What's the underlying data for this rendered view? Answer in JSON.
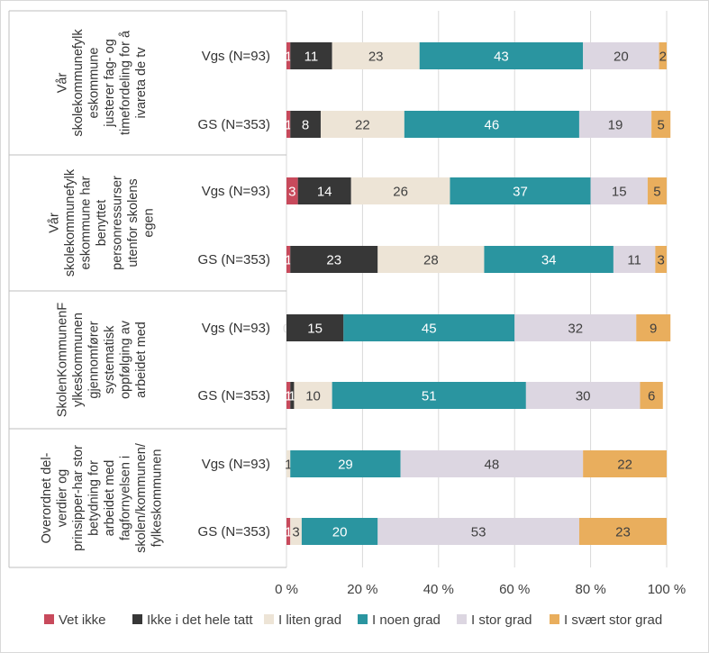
{
  "chart_data": {
    "type": "bar",
    "orientation": "horizontal",
    "stacked": "percent",
    "xlim": [
      0,
      100
    ],
    "x_ticks": [
      "0 %",
      "20 %",
      "40 %",
      "60 %",
      "80 %",
      "100 %"
    ],
    "grid": true,
    "legend_position": "bottom",
    "legend_order": [
      0,
      1,
      2,
      3,
      4,
      5
    ],
    "groups": [
      {
        "label": "Vår skolekommunefylkeskommune justerer fag- og timefordeling for å ivareta de tv",
        "label_lines": [
          "Vår",
          "skolekommunefylk",
          "eskommune",
          "justerer fag- og",
          "timefordeling for å",
          "ivareta de tv"
        ],
        "rows": [
          {
            "label": "Vgs (N=93)",
            "values": [
              1,
              11,
              23,
              43,
              20,
              2
            ]
          },
          {
            "label": "GS (N=353)",
            "values": [
              1,
              8,
              22,
              46,
              19,
              5
            ]
          }
        ]
      },
      {
        "label": "Vår skolekommunefylkeskommune har benyttet personressurser utenfor skolens egen",
        "label_lines": [
          "Vår",
          "skolekommunefylk",
          "eskommune har",
          "benyttet",
          "personressurser",
          "utenfor skolens",
          "egen"
        ],
        "rows": [
          {
            "label": "Vgs (N=93)",
            "values": [
              3,
              14,
              26,
              37,
              15,
              5
            ]
          },
          {
            "label": "GS (N=353)",
            "values": [
              1,
              23,
              28,
              34,
              11,
              3
            ]
          }
        ]
      },
      {
        "label": "SkolenKommunenFylkeskommunen gjennomfører systematisk oppfølging av arbeidet med",
        "label_lines": [
          "SkolenKommunenF",
          "ylkeskommunen",
          "gjennomfører",
          "systematisk",
          "oppfølging av",
          "arbeidet med"
        ],
        "rows": [
          {
            "label": "Vgs (N=93)",
            "values": [
              0,
              15,
              0,
              45,
              32,
              9
            ]
          },
          {
            "label": "GS (N=353)",
            "values": [
              1,
              1,
              10,
              51,
              30,
              6
            ]
          }
        ]
      },
      {
        "label": "Overordnet del-verdier og prinsipper-har stor betydning for arbeidet med fagfornyelsen i skolen/kommunen/fylkeskommunen",
        "label_lines": [
          "Overordnet del-",
          "verdier og",
          "prinsipper-har stor",
          "betydning for",
          "arbeidet med",
          "fagfornyelsen i",
          "skolen/kommunen/",
          "fylkeskommunen"
        ],
        "rows": [
          {
            "label": "Vgs (N=93)",
            "values": [
              0,
              0,
              1,
              29,
              48,
              22
            ]
          },
          {
            "label": "GS (N=353)",
            "values": [
              1,
              0,
              3,
              20,
              53,
              23
            ]
          }
        ]
      }
    ],
    "series": [
      {
        "name": "Vet ikke",
        "color": "#c84a5c"
      },
      {
        "name": "Ikke i det hele tatt",
        "color": "#373737"
      },
      {
        "name": "I liten grad",
        "color": "#ede4d6"
      },
      {
        "name": "I noen grad",
        "color": "#2a95a0"
      },
      {
        "name": "I stor grad",
        "color": "#dcd6e1"
      },
      {
        "name": "I svært stor grad",
        "color": "#e9ae5d"
      }
    ],
    "label_colors": [
      "#ffffff",
      "#ffffff",
      "#404040",
      "#ffffff",
      "#404040",
      "#404040"
    ]
  }
}
